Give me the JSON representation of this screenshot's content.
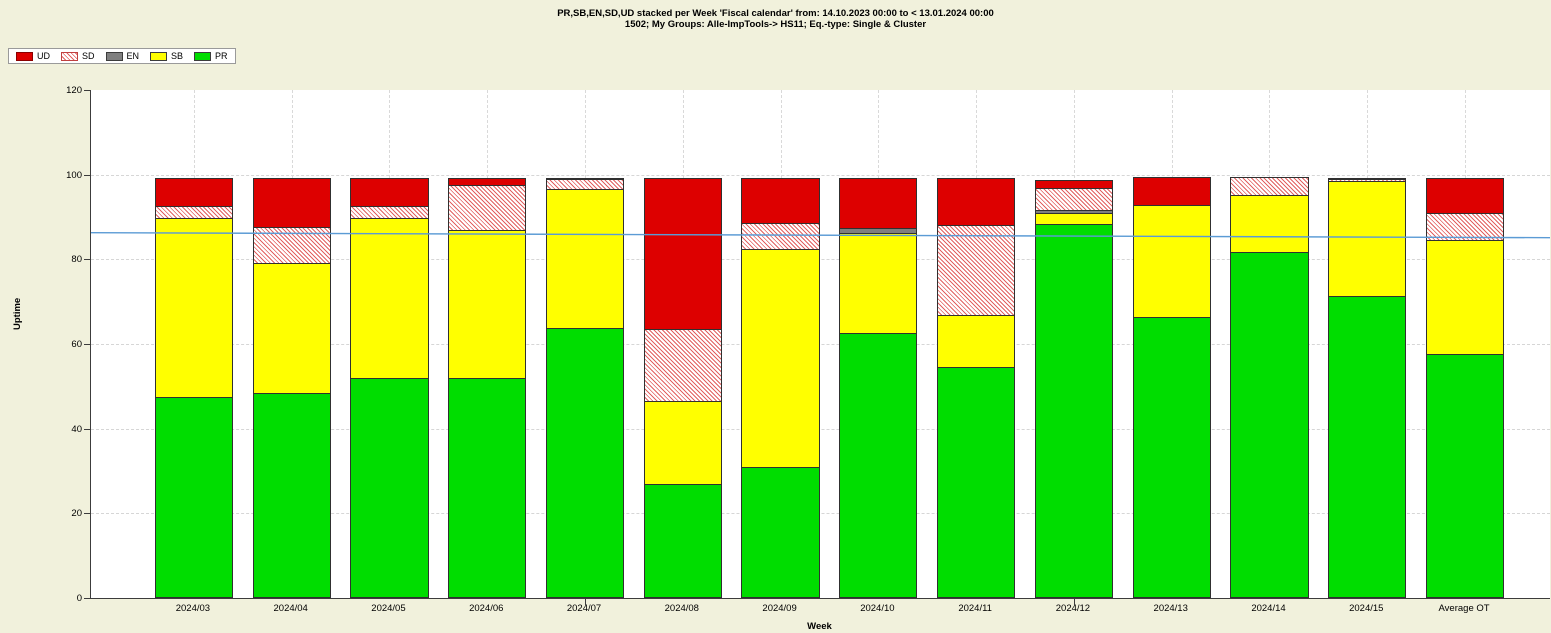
{
  "title": {
    "line1": "PR,SB,EN,SD,UD stacked  per Week  'Fiscal calendar' from: 14.10.2023 00:00 to < 13.01.2024 00:00",
    "line2": "1502; My Groups: Alle-ImpTools-> HS11; Eq.-type: Single & Cluster"
  },
  "legend": {
    "items": [
      {
        "label": "UD",
        "color": "#dd0000",
        "hatch": false,
        "border": "#8b0000"
      },
      {
        "label": "SD",
        "color": "hatch",
        "hatch": true,
        "border": "#c04040"
      },
      {
        "label": "EN",
        "color": "#7f7f7f",
        "hatch": false,
        "border": "#3c3c3c"
      },
      {
        "label": "SB",
        "color": "#ffff00",
        "hatch": false,
        "border": "#3c3c3c"
      },
      {
        "label": "PR",
        "color": "#00dd00",
        "hatch": false,
        "border": "#3c3c3c"
      }
    ]
  },
  "axes": {
    "y_title": "Uptime",
    "x_title": "Week",
    "y_ticks": [
      0,
      20,
      40,
      60,
      80,
      100,
      120
    ],
    "y_max": 120
  },
  "chart_data": {
    "type": "bar",
    "stacked": true,
    "title": "PR,SB,EN,SD,UD stacked per Week 'Fiscal calendar' from: 14.10.2023 00:00 to < 13.01.2024 00:00 — 1502; My Groups: Alle-ImpTools-> HS11; Eq.-type: Single & Cluster",
    "xlabel": "Week",
    "ylabel": "Uptime",
    "ylim": [
      0,
      120
    ],
    "grid": true,
    "legend_position": "top-left",
    "categories": [
      "2024/03",
      "2024/04",
      "2024/05",
      "2024/06",
      "2024/07",
      "2024/08",
      "2024/09",
      "2024/10",
      "2024/11",
      "2024/12",
      "2024/13",
      "2024/14",
      "2024/15",
      "Average OT"
    ],
    "series": [
      {
        "name": "PR",
        "color": "#00dd00",
        "hatch": false,
        "values": [
          47.6,
          48.5,
          51.9,
          52.0,
          63.8,
          26.9,
          30.9,
          62.7,
          54.6,
          88.3,
          66.3,
          81.7,
          71.4,
          57.6
        ]
      },
      {
        "name": "SB",
        "color": "#ffff00",
        "hatch": false,
        "values": [
          42.3,
          30.9,
          38.0,
          35.1,
          33.1,
          19.9,
          51.9,
          23.8,
          12.4,
          2.8,
          26.8,
          13.8,
          27.3,
          27.2
        ]
      },
      {
        "name": "EN",
        "color": "#7f7f7f",
        "hatch": false,
        "values": [
          0,
          0,
          0,
          0,
          0,
          0,
          0,
          1.4,
          0,
          1.0,
          0,
          0,
          0,
          0
        ]
      },
      {
        "name": "SD",
        "color": "hatch",
        "hatch": true,
        "values": [
          3.2,
          8.7,
          3.2,
          10.9,
          2.6,
          17.3,
          6.3,
          0,
          21.7,
          5.5,
          0,
          4.5,
          0.7,
          6.7
        ]
      },
      {
        "name": "UD",
        "color": "#dd0000",
        "hatch": false,
        "values": [
          6.9,
          11.9,
          6.9,
          2.0,
          0.5,
          35.9,
          10.9,
          12.1,
          11.3,
          2.2,
          6.9,
          0,
          0.6,
          8.5
        ]
      }
    ],
    "reference_line": {
      "start_value": 86.3,
      "end_value": 85.1,
      "color": "#5b9bd5"
    },
    "x_tick_indices": [
      4,
      9
    ]
  }
}
